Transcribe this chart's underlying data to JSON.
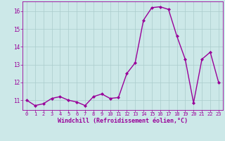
{
  "x": [
    0,
    1,
    2,
    3,
    4,
    5,
    6,
    7,
    8,
    9,
    10,
    11,
    12,
    13,
    14,
    15,
    16,
    17,
    18,
    19,
    20,
    21,
    22,
    23
  ],
  "y": [
    11.0,
    10.7,
    10.8,
    11.1,
    11.2,
    11.0,
    10.9,
    10.7,
    11.2,
    11.35,
    11.1,
    11.15,
    12.5,
    13.1,
    15.5,
    16.2,
    16.25,
    16.1,
    14.6,
    13.3,
    10.85,
    13.3,
    13.7,
    12.0
  ],
  "line_color": "#990099",
  "marker": "D",
  "marker_size": 2.0,
  "bg_color": "#cce8e8",
  "grid_color": "#aacccc",
  "xlabel": "Windchill (Refroidissement éolien,°C)",
  "tick_color": "#990099",
  "ylim": [
    10.45,
    16.55
  ],
  "yticks": [
    11,
    12,
    13,
    14,
    15,
    16
  ],
  "xticks": [
    0,
    1,
    2,
    3,
    4,
    5,
    6,
    7,
    8,
    9,
    10,
    11,
    12,
    13,
    14,
    15,
    16,
    17,
    18,
    19,
    20,
    21,
    22,
    23
  ],
  "line_width": 1.0,
  "tick_fontsize": 5.0,
  "xlabel_fontsize": 6.0
}
